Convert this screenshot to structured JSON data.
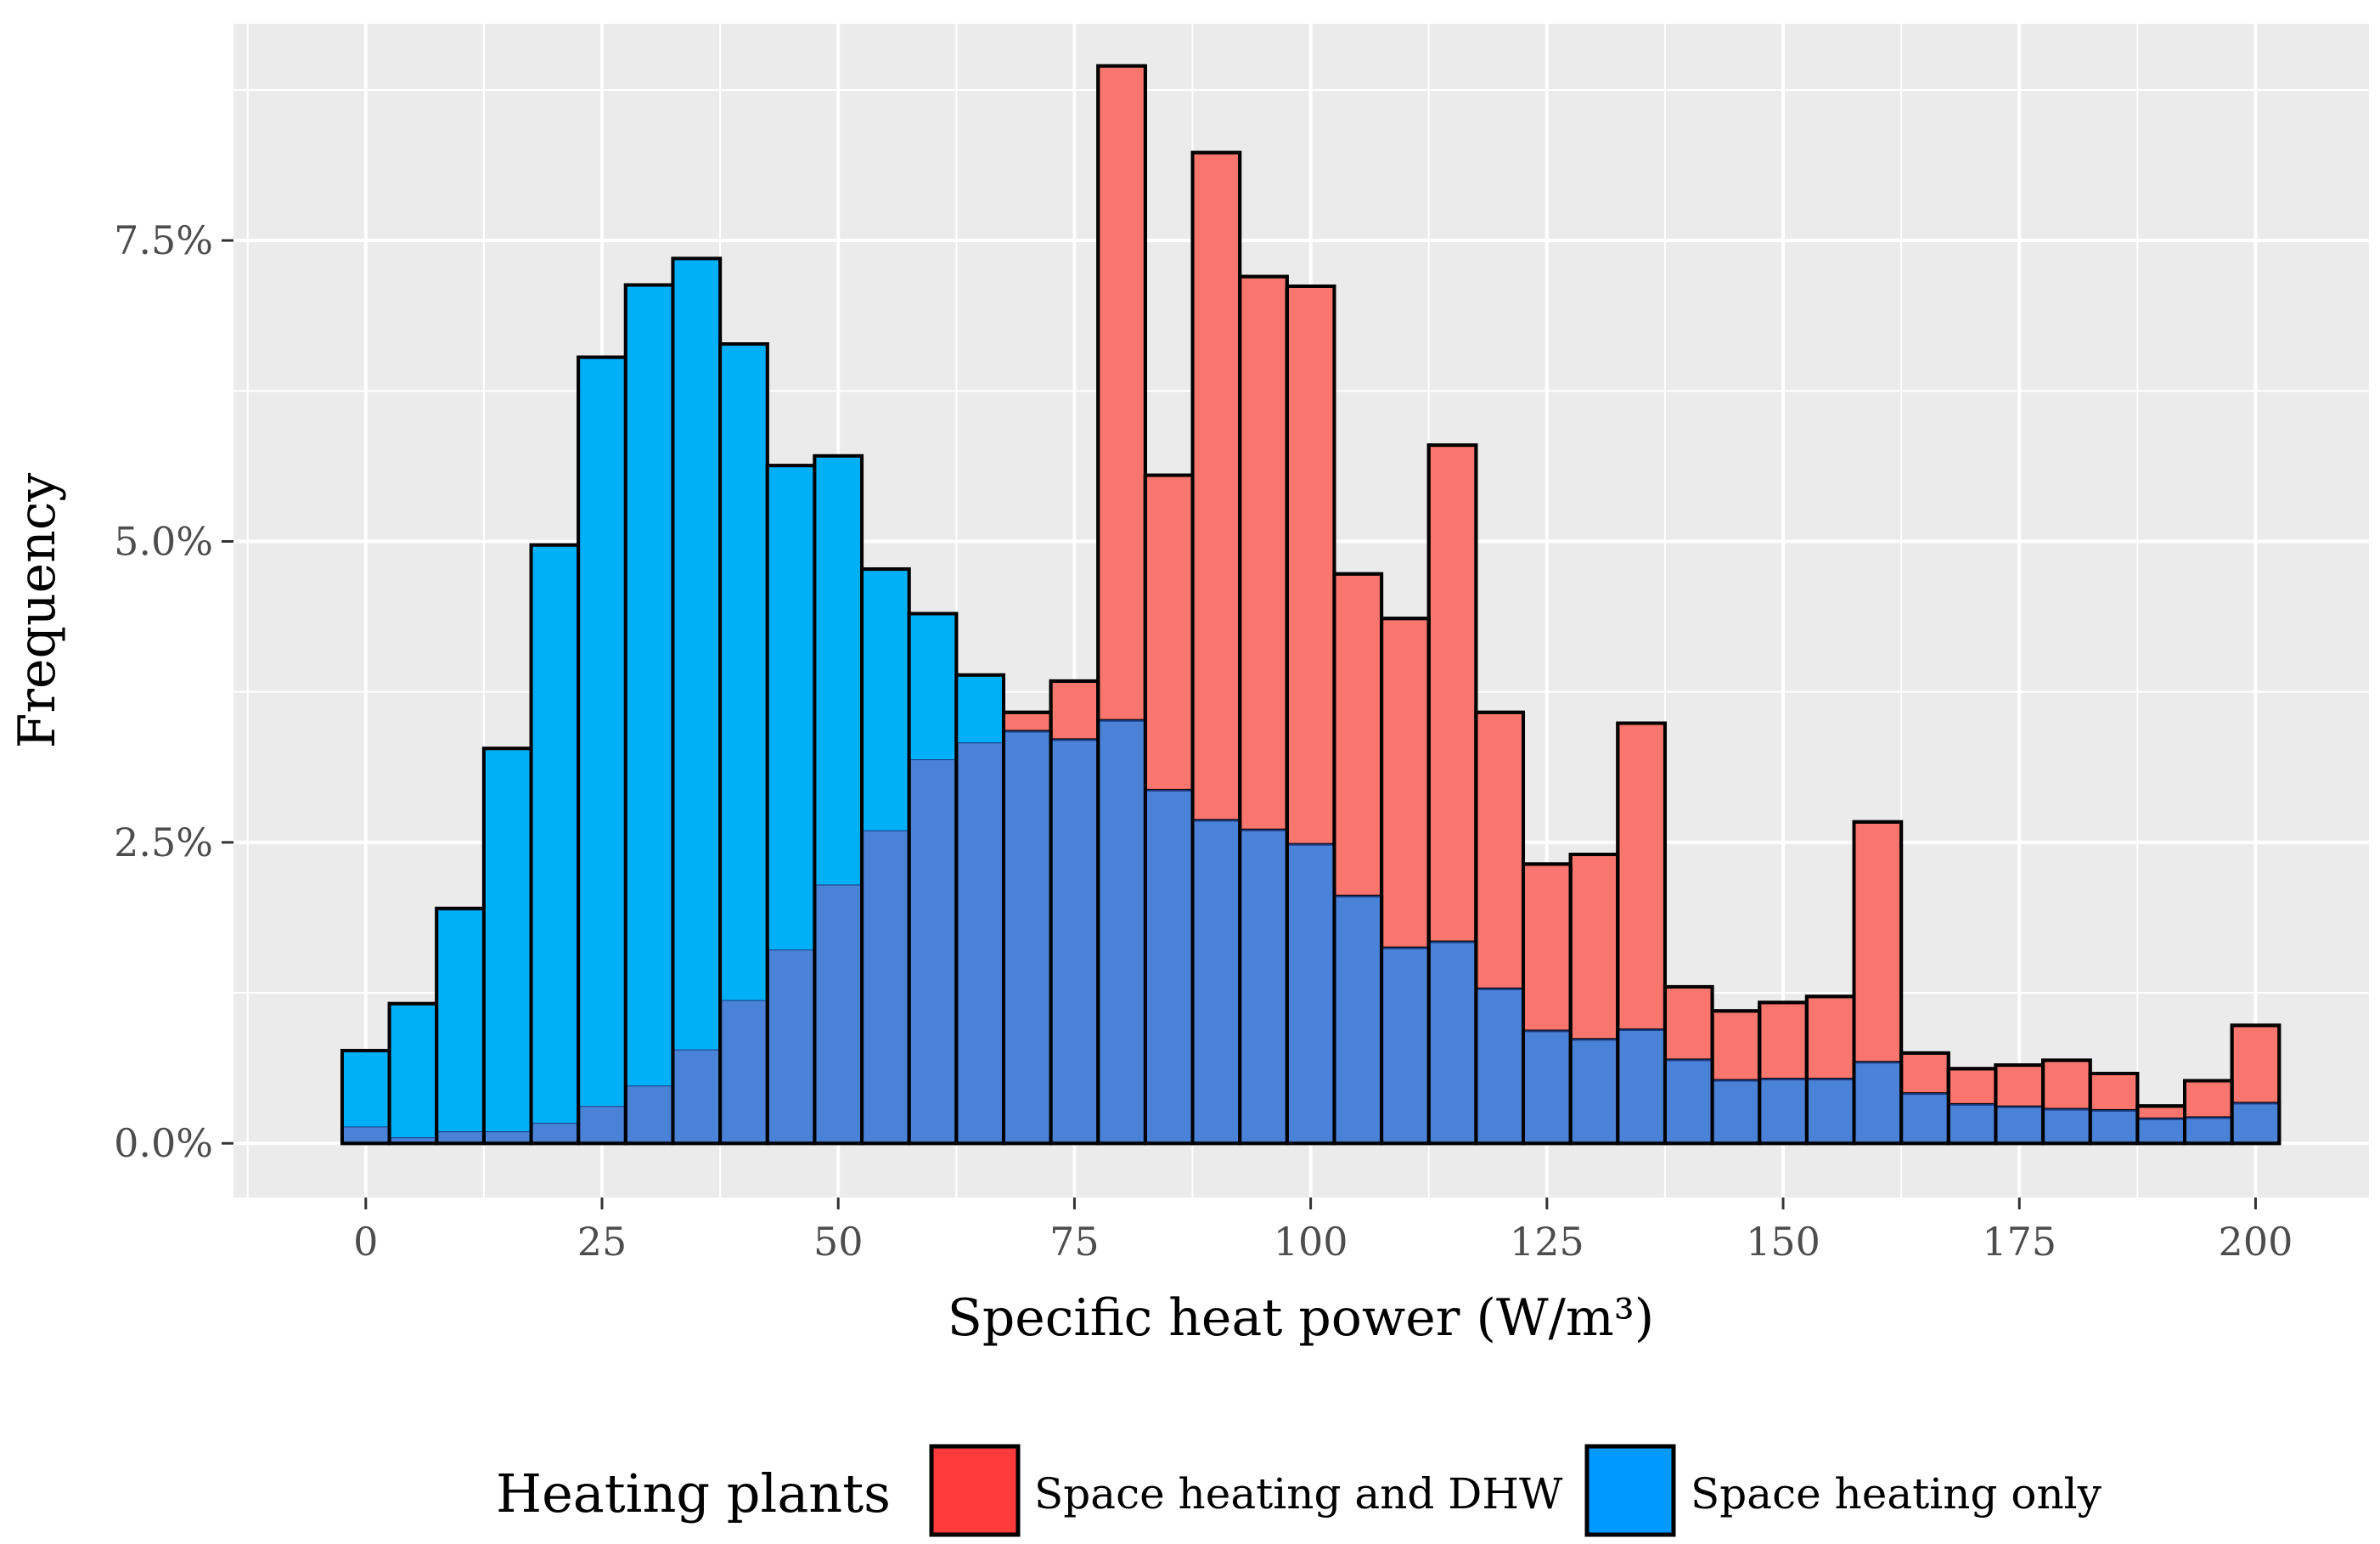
{
  "chart_data": {
    "type": "bar",
    "stacking": "overlay",
    "title": "",
    "xlabel": "Specific heat power (W/m³)",
    "ylabel": "Frequency",
    "xlim": [
      -14,
      212
    ],
    "ylim": [
      -0.45,
      9.3
    ],
    "bin_width": 5,
    "x_ticks": [
      0,
      25,
      50,
      75,
      100,
      125,
      150,
      175,
      200
    ],
    "x_tick_labels": [
      "0",
      "25",
      "50",
      "75",
      "100",
      "125",
      "150",
      "175",
      "200"
    ],
    "y_ticks": [
      0,
      2.5,
      5,
      7.5
    ],
    "y_tick_labels": [
      "0.0%",
      "2.5%",
      "5.0%",
      "7.5%"
    ],
    "grid": true,
    "x": [
      0,
      5,
      10,
      15,
      20,
      25,
      30,
      35,
      40,
      45,
      50,
      55,
      60,
      65,
      70,
      75,
      80,
      85,
      90,
      95,
      100,
      105,
      110,
      115,
      120,
      125,
      130,
      135,
      140,
      145,
      150,
      155,
      160,
      165,
      170,
      175,
      180,
      185,
      190,
      195,
      200
    ],
    "series": [
      {
        "name": "Space heating and DHW",
        "color": "#F8766D",
        "legend_color": "#FF3B3B",
        "values": [
          0.14,
          0.05,
          0.1,
          0.1,
          0.17,
          0.31,
          0.48,
          0.78,
          1.19,
          1.61,
          2.15,
          2.6,
          3.19,
          3.33,
          3.58,
          3.84,
          8.95,
          5.55,
          8.23,
          7.2,
          7.12,
          4.73,
          4.36,
          5.8,
          3.58,
          2.32,
          2.4,
          3.49,
          1.3,
          1.1,
          1.17,
          1.22,
          2.67,
          0.75,
          0.62,
          0.65,
          0.69,
          0.58,
          0.31,
          0.52,
          0.98
        ]
      },
      {
        "name": "Space heating only",
        "color": "#00B0F6",
        "legend_color": "#0099FF",
        "values": [
          0.77,
          1.16,
          1.95,
          3.28,
          4.97,
          6.53,
          7.13,
          7.35,
          6.64,
          5.63,
          5.71,
          4.77,
          4.4,
          3.89,
          3.42,
          3.35,
          3.51,
          2.93,
          2.68,
          2.6,
          2.48,
          2.05,
          1.62,
          1.67,
          1.28,
          0.93,
          0.86,
          0.94,
          0.69,
          0.52,
          0.53,
          0.53,
          0.67,
          0.41,
          0.32,
          0.3,
          0.28,
          0.27,
          0.2,
          0.21,
          0.33
        ]
      }
    ],
    "overlap_color": "#4A82D8",
    "legend_position": "bottom",
    "legend_title": "Heating plants",
    "panel_background": "#EBEBEB",
    "grid_color": "#FFFFFF"
  }
}
